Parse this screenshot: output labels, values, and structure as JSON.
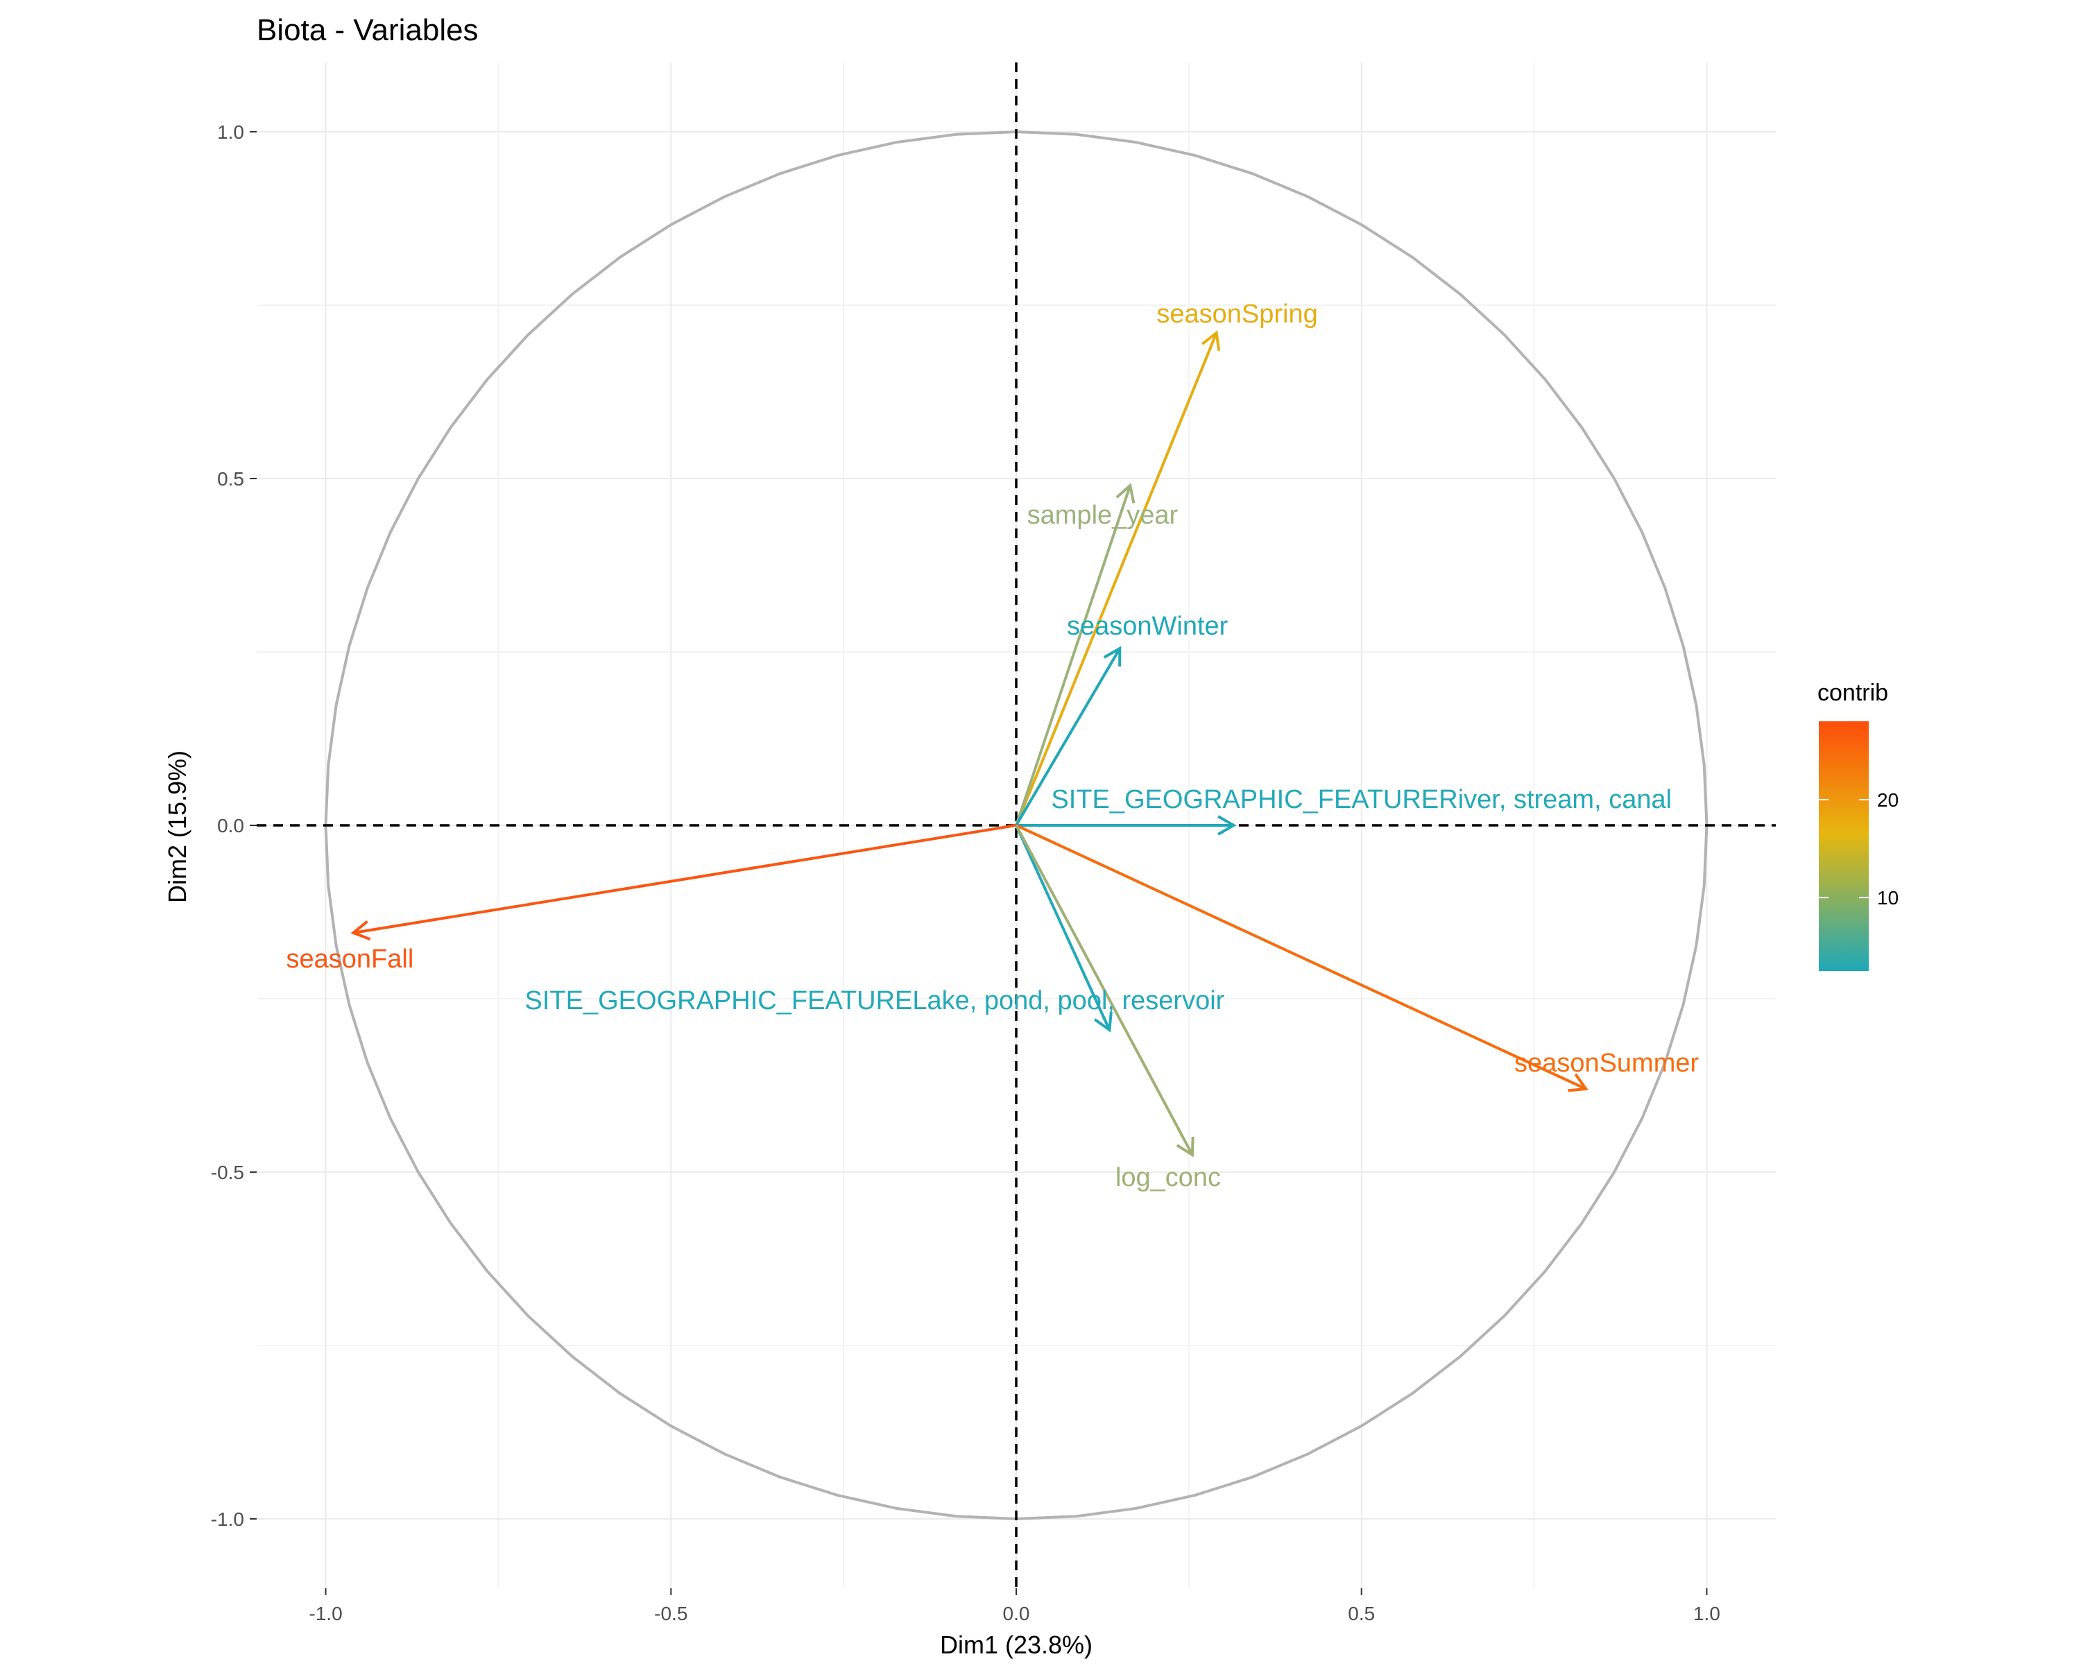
{
  "chart_data": {
    "type": "scatter",
    "subtype": "pca-correlation-circle",
    "title": "Biota - Variables",
    "xlabel": "Dim1 (23.8%)",
    "ylabel": "Dim2 (15.9%)",
    "xlim": [
      -1.1,
      1.1
    ],
    "ylim": [
      -1.1,
      1.1
    ],
    "x_ticks": [
      -1.0,
      -0.5,
      0.0,
      0.5,
      1.0
    ],
    "x_tick_labels": [
      "-1.0",
      "-0.5",
      "0.0",
      "0.5",
      "1.0"
    ],
    "y_ticks": [
      -1.0,
      -0.5,
      0.0,
      0.5,
      1.0
    ],
    "y_tick_labels": [
      "-1.0",
      "-0.5",
      "0.0",
      "0.5",
      "1.0"
    ],
    "grid": true,
    "unit_circle": true,
    "reference_lines": "dashed at x=0 and y=0",
    "variables": [
      {
        "name": "seasonSpring",
        "x": 0.29,
        "y": 0.71,
        "contrib": 19.5,
        "color": "#e6ad12",
        "label_x": 0.32,
        "label_y": 0.735
      },
      {
        "name": "sample_year",
        "x": 0.165,
        "y": 0.49,
        "contrib": 12.0,
        "color": "#9cb27b",
        "label_x": 0.125,
        "label_y": 0.445
      },
      {
        "name": "seasonWinter",
        "x": 0.15,
        "y": 0.255,
        "contrib": 4.0,
        "color": "#1fa8b8",
        "label_x": 0.19,
        "label_y": 0.285
      },
      {
        "name": "SITE_GEOGRAPHIC_FEATURERiver, stream, canal",
        "x": 0.315,
        "y": 0.0,
        "contrib": 3.0,
        "color": "#22a9b8",
        "label_x": 0.5,
        "label_y": 0.035
      },
      {
        "name": "seasonFall",
        "x": -0.96,
        "y": -0.155,
        "contrib": 27.5,
        "color": "#fb5511",
        "label_x": -0.965,
        "label_y": -0.195
      },
      {
        "name": "SITE_GEOGRAPHIC_FEATURELake, pond, pool, reservoir",
        "x": 0.135,
        "y": -0.295,
        "contrib": 3.0,
        "color": "#22a9b8",
        "label_x": -0.205,
        "label_y": -0.255
      },
      {
        "name": "seasonSummer",
        "x": 0.825,
        "y": -0.38,
        "contrib": 25.0,
        "color": "#f96b0b",
        "label_x": 0.855,
        "label_y": -0.345
      },
      {
        "name": "log_conc",
        "x": 0.255,
        "y": -0.475,
        "contrib": 12.0,
        "color": "#a0b075",
        "label_x": 0.22,
        "label_y": -0.51
      }
    ],
    "legend": {
      "title": "contrib",
      "placement": "right",
      "type": "gradient",
      "ticks": [
        10,
        20
      ],
      "tick_labels": [
        "10",
        "20"
      ],
      "range": [
        2.5,
        28
      ],
      "colors": [
        "#1fa8b8",
        "#e6b70f",
        "#ff4d0b"
      ]
    }
  }
}
